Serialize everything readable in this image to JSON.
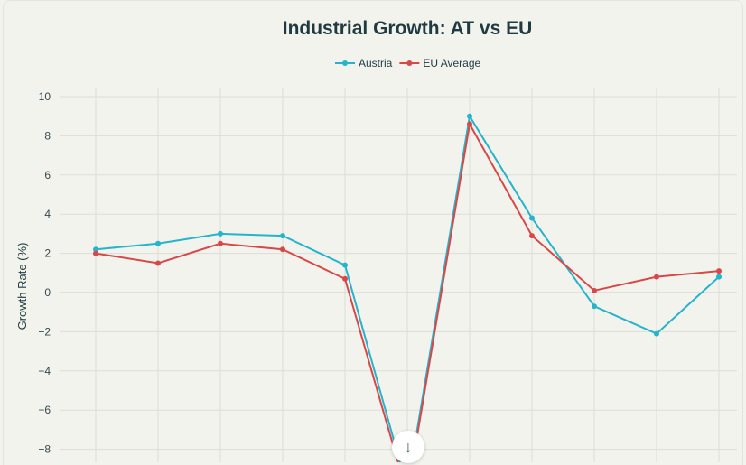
{
  "chart_data": {
    "type": "line",
    "title": "Industrial Growth: AT vs EU",
    "xlabel": "",
    "ylabel": "Growth Rate (%)",
    "ylim": [
      -10,
      10
    ],
    "yticks": [
      10,
      8,
      6,
      4,
      2,
      0,
      -2,
      -4,
      -6,
      -8
    ],
    "x": [
      0,
      1,
      2,
      3,
      4,
      5,
      6,
      7,
      8,
      9,
      10
    ],
    "grid": true,
    "legend_position": "top-center",
    "series": [
      {
        "name": "Austria",
        "color": "#24b4cc",
        "values": [
          2.2,
          2.5,
          3.0,
          2.9,
          1.4,
          -10.0,
          9.0,
          3.8,
          -0.7,
          -2.1,
          0.8
        ]
      },
      {
        "name": "EU Average",
        "color": "#d94848",
        "values": [
          2.0,
          1.5,
          2.5,
          2.2,
          0.7,
          -10.3,
          8.6,
          2.9,
          0.1,
          0.8,
          1.1
        ]
      }
    ]
  },
  "scroll_button": {
    "icon": "arrow-down-icon",
    "glyph": "↓"
  }
}
